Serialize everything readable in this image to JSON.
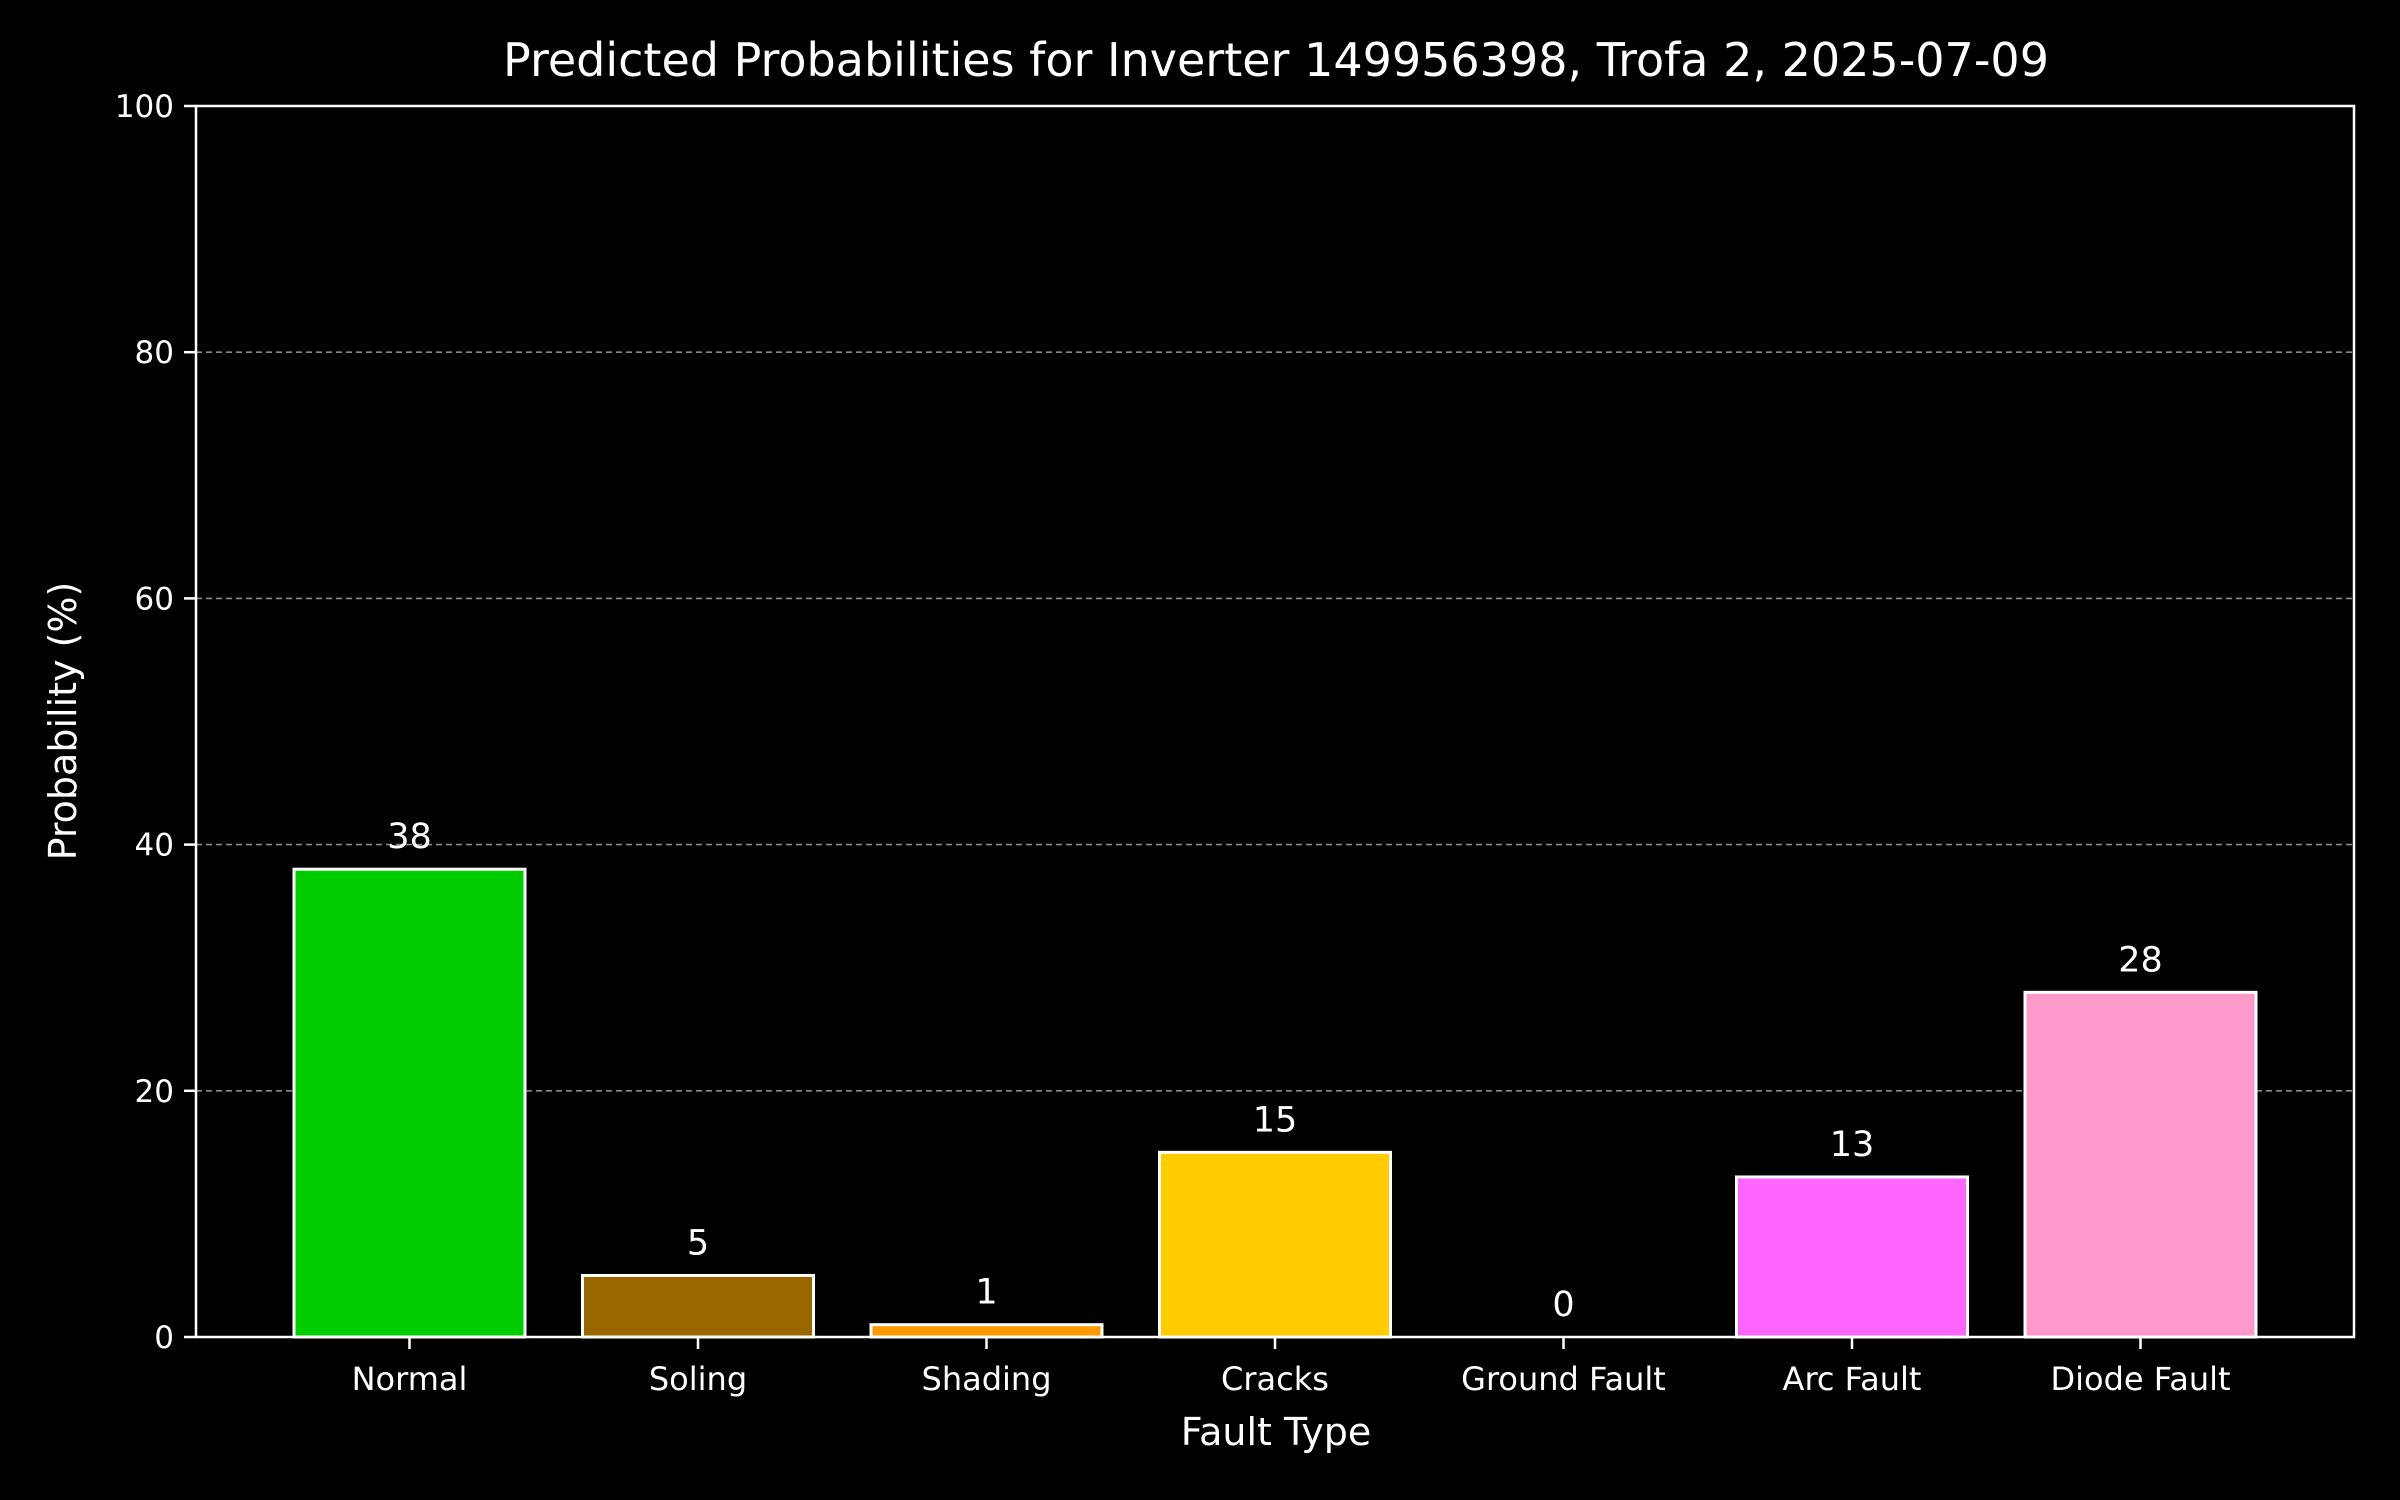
{
  "chart_data": {
    "type": "bar",
    "title": "Predicted Probabilities for Inverter 149956398, Trofa 2, 2025-07-09",
    "xlabel": "Fault Type",
    "ylabel": "Probability (%)",
    "ylim": [
      0,
      100
    ],
    "yticks": [
      "0",
      "20",
      "40",
      "60",
      "80",
      "100"
    ],
    "categories": [
      "Normal",
      "Soling",
      "Shading",
      "Cracks",
      "Ground Fault",
      "Arc Fault",
      "Diode Fault"
    ],
    "values": [
      38,
      5,
      1,
      15,
      0,
      13,
      28
    ],
    "value_labels": [
      "38",
      "5",
      "1",
      "15",
      "0",
      "13",
      "28"
    ],
    "colors": [
      "#00cc00",
      "#996600",
      "#ff9900",
      "#ffcc00",
      "#cc0000",
      "#ff66ff",
      "#ff99cc"
    ],
    "grid": "horizontal dashed",
    "background": "#000000",
    "foreground": "#ffffff"
  }
}
